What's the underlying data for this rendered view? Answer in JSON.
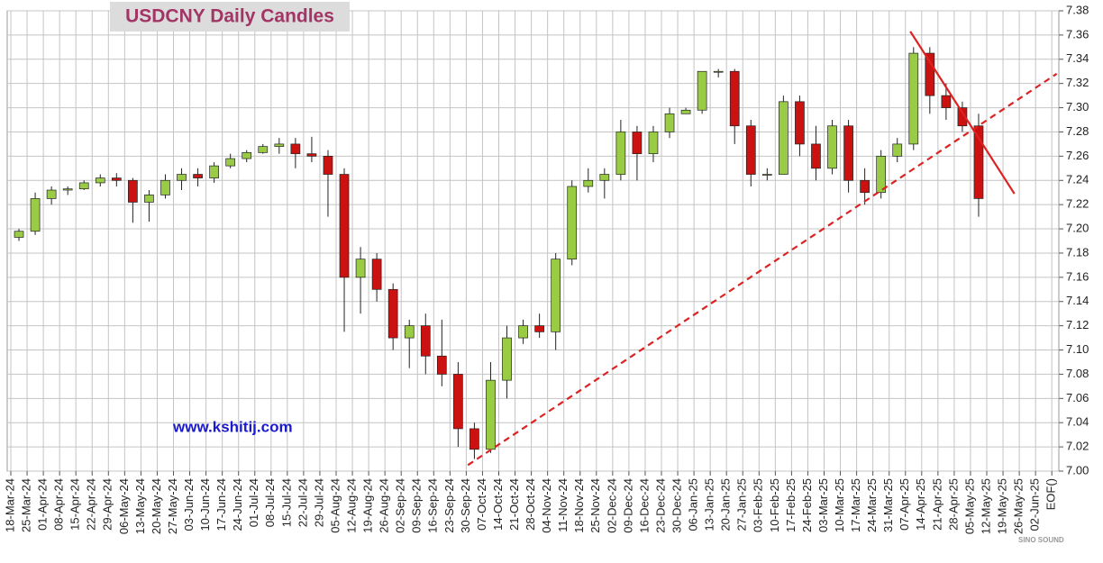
{
  "chart_data": {
    "type": "candlestick",
    "title": "USDCNY Daily Candles",
    "watermark": "www.kshitij.com",
    "logo": "SINO SOUND",
    "categories": [
      "18-Mar-24",
      "25-Mar-24",
      "01-Apr-24",
      "08-Apr-24",
      "15-Apr-24",
      "22-Apr-24",
      "29-Apr-24",
      "06-May-24",
      "13-May-24",
      "20-May-24",
      "27-May-24",
      "03-Jun-24",
      "10-Jun-24",
      "17-Jun-24",
      "24-Jun-24",
      "01-Jul-24",
      "08-Jul-24",
      "15-Jul-24",
      "22-Jul-24",
      "29-Jul-24",
      "05-Aug-24",
      "12-Aug-24",
      "19-Aug-24",
      "26-Aug-24",
      "02-Sep-24",
      "09-Sep-24",
      "16-Sep-24",
      "23-Sep-24",
      "30-Sep-24",
      "07-Oct-24",
      "14-Oct-24",
      "21-Oct-24",
      "28-Oct-24",
      "04-Nov-24",
      "11-Nov-24",
      "18-Nov-24",
      "25-Nov-24",
      "02-Dec-24",
      "09-Dec-24",
      "16-Dec-24",
      "23-Dec-24",
      "30-Dec-24",
      "06-Jan-25",
      "13-Jan-25",
      "20-Jan-25",
      "27-Jan-25",
      "03-Feb-25",
      "10-Feb-25",
      "17-Feb-25",
      "24-Feb-25",
      "03-Mar-25",
      "10-Mar-25",
      "17-Mar-25",
      "24-Mar-25",
      "31-Mar-25",
      "07-Apr-25",
      "14-Apr-25",
      "21-Apr-25",
      "28-Apr-25",
      "05-May-25",
      "12-May-25",
      "19-May-25",
      "26-May-25",
      "02-Jun-25",
      "EOF()"
    ],
    "open": [
      7.193,
      7.198,
      7.225,
      7.232,
      7.233,
      7.238,
      7.242,
      7.24,
      7.222,
      7.228,
      7.24,
      7.245,
      7.242,
      7.252,
      7.258,
      7.263,
      7.268,
      7.27,
      7.262,
      7.26,
      7.245,
      7.16,
      7.175,
      7.15,
      7.11,
      7.12,
      7.095,
      7.08,
      7.035,
      7.018,
      7.075,
      7.11,
      7.12,
      7.115,
      7.175,
      7.235,
      7.24,
      7.245,
      7.28,
      7.262,
      7.28,
      7.295,
      7.298,
      7.33,
      7.33,
      7.285,
      7.245,
      7.245,
      7.305,
      7.27,
      7.25,
      7.285,
      7.24,
      7.23,
      7.26,
      7.27,
      7.345,
      7.31,
      7.3,
      7.285,
      null,
      null,
      null,
      null,
      null
    ],
    "high": [
      7.2,
      7.23,
      7.235,
      7.235,
      7.24,
      7.245,
      7.246,
      7.242,
      7.232,
      7.245,
      7.25,
      7.25,
      7.255,
      7.262,
      7.265,
      7.27,
      7.275,
      7.275,
      7.276,
      7.265,
      7.25,
      7.185,
      7.18,
      7.155,
      7.125,
      7.13,
      7.125,
      7.09,
      7.04,
      7.09,
      7.12,
      7.125,
      7.13,
      7.18,
      7.24,
      7.25,
      7.25,
      7.29,
      7.285,
      7.285,
      7.3,
      7.3,
      7.33,
      7.332,
      7.332,
      7.29,
      7.25,
      7.31,
      7.31,
      7.285,
      7.29,
      7.29,
      7.25,
      7.265,
      7.275,
      7.35,
      7.35,
      7.32,
      7.305,
      7.295,
      null,
      null,
      null,
      null,
      null
    ],
    "low": [
      7.19,
      7.195,
      7.22,
      7.228,
      7.232,
      7.235,
      7.235,
      7.205,
      7.206,
      7.225,
      7.232,
      7.235,
      7.238,
      7.25,
      7.255,
      7.262,
      7.262,
      7.25,
      7.255,
      7.21,
      7.115,
      7.13,
      7.14,
      7.1,
      7.085,
      7.08,
      7.07,
      7.02,
      7.01,
      7.015,
      7.06,
      7.105,
      7.11,
      7.1,
      7.17,
      7.23,
      7.225,
      7.24,
      7.24,
      7.255,
      7.275,
      7.295,
      7.295,
      7.325,
      7.27,
      7.235,
      7.24,
      7.245,
      7.26,
      7.24,
      7.245,
      7.23,
      7.22,
      7.225,
      7.255,
      7.265,
      7.295,
      7.29,
      7.28,
      7.21,
      null,
      null,
      null,
      null,
      null
    ],
    "close": [
      7.198,
      7.225,
      7.232,
      7.233,
      7.238,
      7.242,
      7.24,
      7.222,
      7.228,
      7.24,
      7.245,
      7.242,
      7.252,
      7.258,
      7.263,
      7.268,
      7.27,
      7.262,
      7.26,
      7.245,
      7.16,
      7.175,
      7.15,
      7.11,
      7.12,
      7.095,
      7.08,
      7.035,
      7.018,
      7.075,
      7.11,
      7.12,
      7.115,
      7.175,
      7.235,
      7.24,
      7.245,
      7.28,
      7.262,
      7.28,
      7.295,
      7.298,
      7.33,
      7.33,
      7.285,
      7.245,
      7.245,
      7.305,
      7.27,
      7.25,
      7.285,
      7.24,
      7.23,
      7.26,
      7.27,
      7.345,
      7.31,
      7.3,
      7.285,
      7.225,
      null,
      null,
      null,
      null,
      null
    ],
    "up_color": "#99cc44",
    "down_color": "#cc1111",
    "trendlines": [
      {
        "dash": true,
        "color": "#dd2222",
        "x": [
          28.1,
          64.3
        ],
        "y": [
          7.005,
          7.328
        ]
      },
      {
        "dash": false,
        "color": "#dd2222",
        "x": [
          55.3,
          61.7
        ],
        "y": [
          7.363,
          7.229
        ]
      }
    ],
    "ylim": [
      7.0,
      7.38
    ],
    "yticks": [
      {
        "value": 7.0,
        "label": "7.00"
      },
      {
        "value": 7.02,
        "label": "7.02"
      },
      {
        "value": 7.04,
        "label": "7.04"
      },
      {
        "value": 7.06,
        "label": "7.06"
      },
      {
        "value": 7.08,
        "label": "7.08"
      },
      {
        "value": 7.1,
        "label": "7.10"
      },
      {
        "value": 7.12,
        "label": "7.12"
      },
      {
        "value": 7.14,
        "label": "7.14"
      },
      {
        "value": 7.16,
        "label": "7.16"
      },
      {
        "value": 7.18,
        "label": "7.18"
      },
      {
        "value": 7.2,
        "label": "7.20"
      },
      {
        "value": 7.22,
        "label": "7.22"
      },
      {
        "value": 7.24,
        "label": "7.24"
      },
      {
        "value": 7.26,
        "label": "7.26"
      },
      {
        "value": 7.28,
        "label": "7.28"
      },
      {
        "value": 7.3,
        "label": "7.30"
      },
      {
        "value": 7.32,
        "label": "7.32"
      },
      {
        "value": 7.34,
        "label": "7.34"
      },
      {
        "value": 7.36,
        "label": "7.36"
      },
      {
        "value": 7.38,
        "label": "7.38"
      }
    ],
    "grid": true
  }
}
